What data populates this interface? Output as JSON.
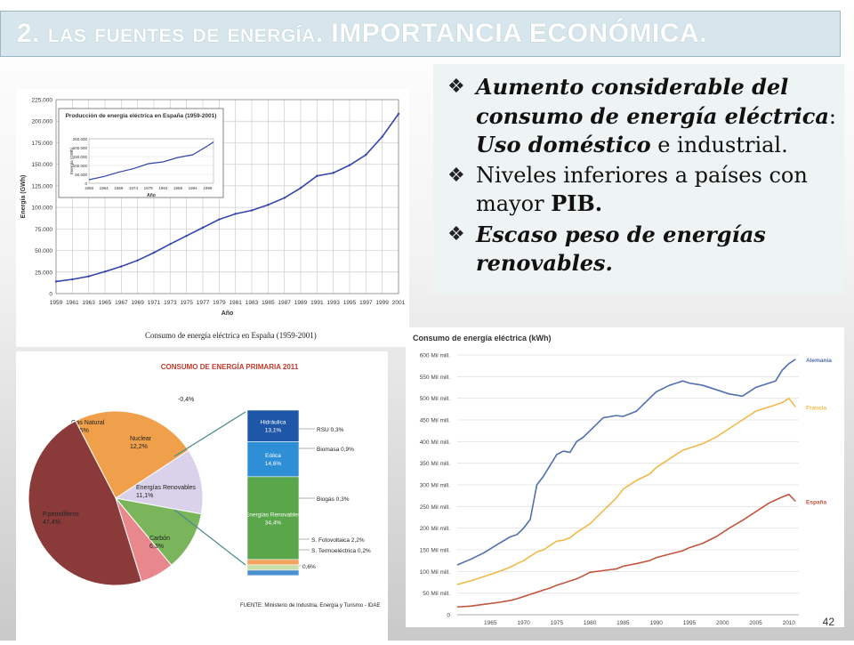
{
  "title": {
    "part1": "2. las fuentes de energía",
    "part2": ". IMPORTANCIA ECONÓMICA."
  },
  "bullets": [
    [
      {
        "t": "Aumento considerable del consumo de energía eléctrica",
        "s": "bi"
      },
      {
        "t": ": ",
        "s": "n"
      },
      {
        "t": "Uso doméstico",
        "s": "bi"
      },
      {
        "t": " e industrial.",
        "s": "n"
      }
    ],
    [
      {
        "t": "Niveles inferiores a países con mayor ",
        "s": "n"
      },
      {
        "t": "PIB.",
        "s": "b"
      }
    ],
    [
      {
        "t": "Escaso peso de energías renovables.",
        "s": "bi"
      }
    ]
  ],
  "bullet_marker": "❖",
  "page_number": "42",
  "chart1": {
    "xlabel": "Año",
    "ylabel": "Energía (GWh)",
    "caption": "Consumo de energía eléctrica en España (1959-2001)",
    "inset_title": "Producción de energía eléctrica en España (1959-2001)",
    "inset_xlabel": "Año",
    "inset_ylabel": "Energía (GWh)"
  },
  "chart2": {
    "title": "CONSUMO DE ENERGÍA PRIMARIA 2011",
    "source": "FUENTE: Ministerio de Industria, Energía y Turismo - IDAE"
  },
  "chart3": {
    "title": "Consumo de energía eléctrica (kWh)"
  },
  "chart_data": [
    {
      "type": "line",
      "title": "",
      "xlabel": "Año",
      "ylabel": "Energía (GWh)",
      "ylim": [
        0,
        225000
      ],
      "yticks": [
        "0",
        "25.000",
        "50.000",
        "75.000",
        "100.000",
        "125.000",
        "150.000",
        "175.000",
        "200.000",
        "225.000"
      ],
      "x_ticklabels": [
        "1959",
        "1961",
        "1963",
        "1965",
        "1967",
        "1969",
        "1971",
        "1973",
        "1975",
        "1977",
        "1979",
        "1981",
        "1983",
        "1985",
        "1987",
        "1989",
        "1991",
        "1993",
        "1995",
        "1997",
        "1999",
        "2001"
      ],
      "x": [
        1959,
        1961,
        1963,
        1965,
        1967,
        1969,
        1971,
        1973,
        1975,
        1977,
        1979,
        1981,
        1983,
        1985,
        1987,
        1989,
        1991,
        1993,
        1995,
        1997,
        1999,
        2001
      ],
      "values": [
        14000,
        16500,
        20000,
        25500,
        31500,
        38500,
        47500,
        57500,
        67000,
        76500,
        86000,
        92500,
        96500,
        103000,
        111000,
        122500,
        136500,
        140000,
        149000,
        161000,
        182000,
        208500
      ],
      "grid": true
    },
    {
      "type": "line",
      "title": "Producción de energía eléctrica en España (1959-2001)",
      "xlabel": "Año",
      "ylabel": "Energía (GWh)",
      "ylim": [
        0,
        250000
      ],
      "yticks": [
        "0",
        "50.000",
        "100.000",
        "150.000",
        "200.000",
        "250.000"
      ],
      "x_ticklabels": [
        "1959",
        "1964",
        "1969",
        "1974",
        "1979",
        "1984",
        "1989",
        "1994",
        "1999"
      ],
      "x": [
        1959,
        1964,
        1969,
        1974,
        1979,
        1984,
        1989,
        1994,
        1999,
        2001
      ],
      "values": [
        20000,
        38000,
        62000,
        82000,
        110000,
        120000,
        145000,
        160000,
        210000,
        232000
      ]
    },
    {
      "type": "pie",
      "title": "CONSUMO DE ENERGÍA PRIMARIA 2011",
      "slices": [
        {
          "label": "P.petrolíferos",
          "value": 47.4,
          "value_label": "47,4%",
          "color": "#8b3a3a"
        },
        {
          "label": "Gas Natural",
          "value": 23.5,
          "value_label": "23,5%",
          "color": "#f0a04b"
        },
        {
          "label": "Nuclear",
          "value": 12.2,
          "value_label": "12,2%",
          "color": "#d9d2ea"
        },
        {
          "label": "Energías Renovables",
          "value": 11.1,
          "value_label": "11,1%",
          "color": "#7ab55c"
        },
        {
          "label": "Carbón",
          "value": 6.3,
          "value_label": "6,3%",
          "color": "#e8878c"
        }
      ],
      "extra_label": "-0,4%",
      "breakdown": [
        {
          "label": "Hidráulica",
          "value": 13.1,
          "value_label": "13,1%",
          "color": "#1f57a8"
        },
        {
          "label": "Eólica",
          "value": 14.6,
          "value_label": "14,6%",
          "color": "#2e8fd6"
        },
        {
          "label": "Energías Renovables",
          "value": 34.4,
          "value_label": "34,4%",
          "color": "#5aa64a"
        },
        {
          "label": "S. Fotovoltaica",
          "value": 2.2,
          "value_label": "2,2%",
          "color": "#f2a35e"
        },
        {
          "label": "S. Termoeléctrica",
          "value": 0.2,
          "value_label": "0,2%",
          "color": "#c9dfa8"
        },
        {
          "label": "",
          "value": 0.6,
          "value_label": "0,6%",
          "color": "#4a8fd0"
        }
      ],
      "side_labels": [
        "RSU 0,3%",
        "Biomasa 0,9%",
        "Biogás 0,3%",
        "S. Fotovoltaica 2,2%",
        "S. Termoeléctrica 0,2%",
        "0,6%"
      ]
    },
    {
      "type": "line",
      "title": "Consumo de energía eléctrica (kWh)",
      "ylim": [
        0,
        600
      ],
      "yticks": [
        "0",
        "50 Mil mill.",
        "100 Mil mill.",
        "150 Mil mill.",
        "200 Mil mill.",
        "250 Mil mill.",
        "300 Mil mill.",
        "350 Mil mill.",
        "400 Mil mill.",
        "450 Mil mill.",
        "500 Mil mill.",
        "550 Mil mill.",
        "600 Mil mill."
      ],
      "x_ticklabels": [
        "1965",
        "1970",
        "1975",
        "1980",
        "1985",
        "1990",
        "1995",
        "2000",
        "2005",
        "2010"
      ],
      "x": [
        1960,
        1962,
        1964,
        1966,
        1968,
        1969,
        1970,
        1971,
        1972,
        1973,
        1974,
        1975,
        1976,
        1977,
        1978,
        1979,
        1980,
        1982,
        1984,
        1985,
        1987,
        1989,
        1990,
        1992,
        1994,
        1995,
        1997,
        1999,
        2001,
        2003,
        2005,
        2007,
        2008,
        2009,
        2010,
        2011
      ],
      "series": [
        {
          "name": "Alemania",
          "color": "#4f6fb0",
          "values": [
            115,
            128,
            143,
            162,
            180,
            185,
            200,
            220,
            300,
            320,
            345,
            370,
            378,
            375,
            400,
            410,
            425,
            455,
            460,
            458,
            470,
            500,
            515,
            530,
            540,
            535,
            530,
            520,
            510,
            505,
            525,
            535,
            540,
            565,
            580,
            590
          ]
        },
        {
          "name": "Francia",
          "color": "#f0b94a",
          "values": [
            70,
            78,
            88,
            98,
            110,
            118,
            125,
            135,
            145,
            150,
            160,
            170,
            172,
            178,
            190,
            200,
            210,
            240,
            270,
            290,
            310,
            325,
            340,
            360,
            380,
            385,
            395,
            410,
            430,
            450,
            470,
            480,
            485,
            490,
            500,
            480
          ]
        },
        {
          "name": "España",
          "color": "#c2553d",
          "values": [
            18,
            20,
            24,
            28,
            33,
            37,
            42,
            47,
            52,
            57,
            62,
            68,
            73,
            78,
            83,
            90,
            98,
            102,
            106,
            112,
            118,
            125,
            132,
            140,
            148,
            155,
            165,
            180,
            200,
            218,
            238,
            258,
            265,
            272,
            278,
            262
          ]
        }
      ]
    }
  ]
}
